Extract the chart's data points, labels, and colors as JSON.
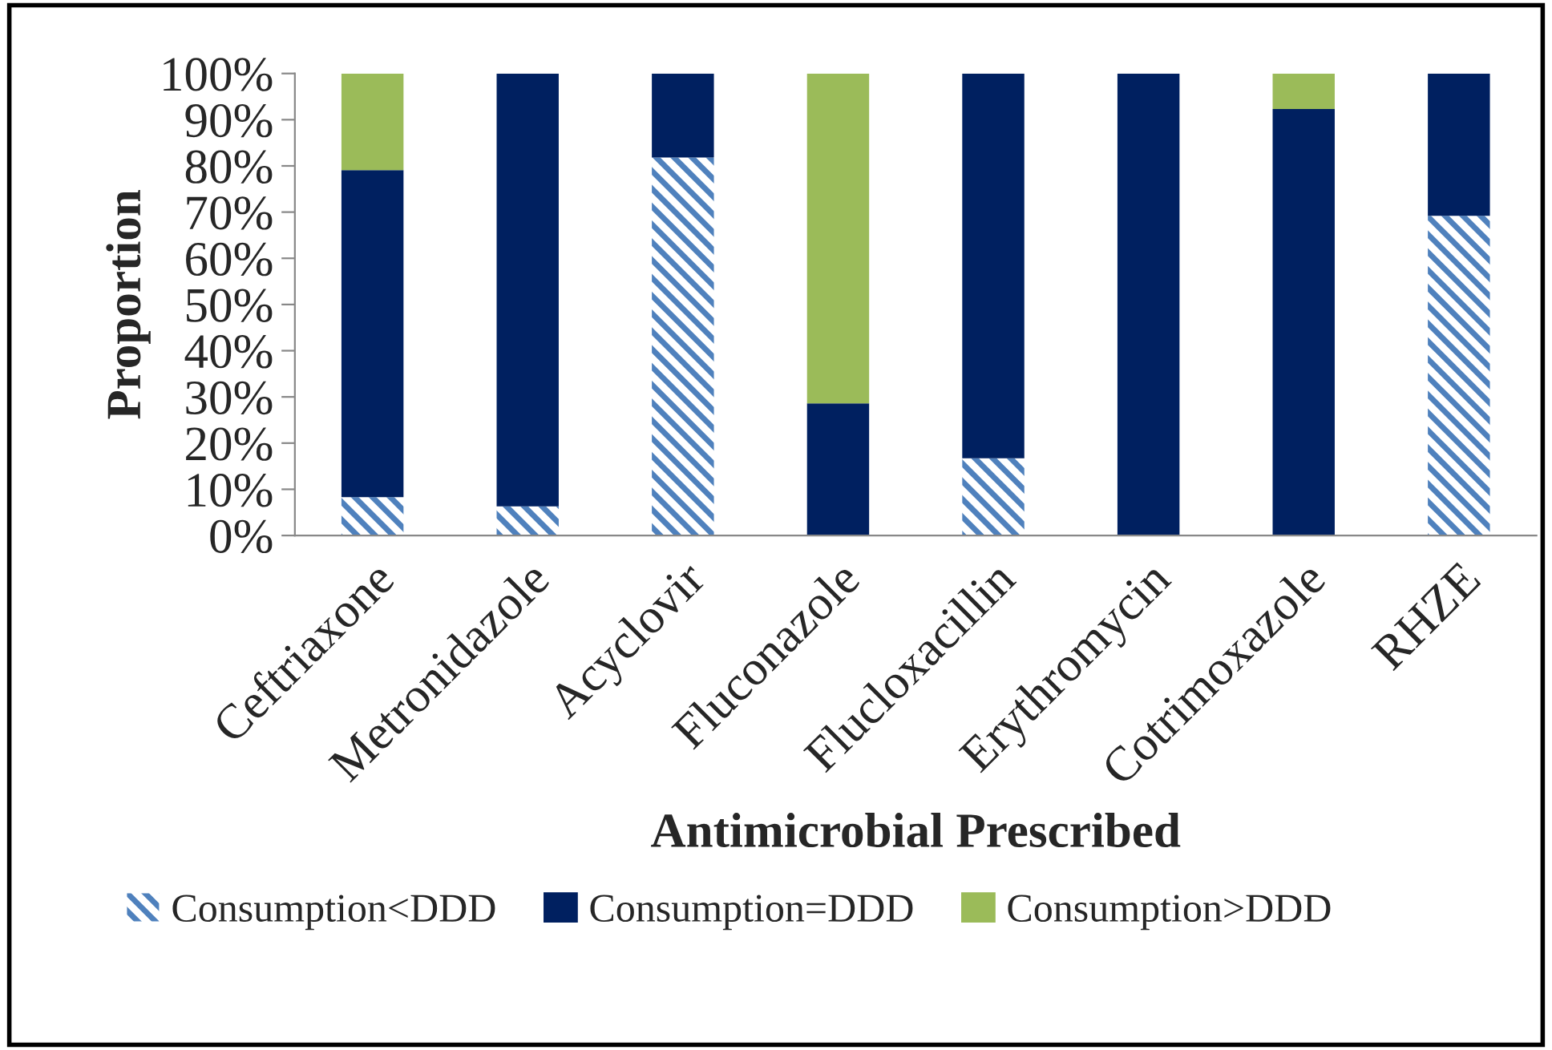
{
  "chart_data": {
    "type": "bar",
    "stacked": true,
    "xlabel": "Antimicrobial Prescribed",
    "ylabel": "Proportion",
    "categories": [
      "Ceftriaxone",
      "Metronidazole",
      "Acyclovir",
      "Fluconazole",
      "Flucloxacillin",
      "Erythromycin",
      "Cotrimoxazole",
      "RHZE"
    ],
    "series": [
      {
        "name": "Consumption<DDD",
        "color": "#4f81bd",
        "values": [
          8.3,
          6.3,
          81.8,
          0,
          16.7,
          0,
          0,
          69.2
        ]
      },
      {
        "name": "Consumption=DDD",
        "color": "#002060",
        "values": [
          70.8,
          93.7,
          18.2,
          28.6,
          83.3,
          100,
          92.3,
          30.8
        ]
      },
      {
        "name": "Consumption>DDD",
        "color": "#9bbb59",
        "values": [
          20.9,
          0,
          0,
          71.4,
          0,
          0,
          7.7,
          0
        ]
      }
    ],
    "ylim": [
      0,
      100
    ],
    "yticks": [
      {
        "value": 0,
        "label": "0%"
      },
      {
        "value": 10,
        "label": "10%"
      },
      {
        "value": 20,
        "label": "20%"
      },
      {
        "value": 30,
        "label": "30%"
      },
      {
        "value": 40,
        "label": "40%"
      },
      {
        "value": 50,
        "label": "50%"
      },
      {
        "value": 60,
        "label": "60%"
      },
      {
        "value": 70,
        "label": "70%"
      },
      {
        "value": 80,
        "label": "80%"
      },
      {
        "value": 90,
        "label": "90%"
      },
      {
        "value": 100,
        "label": "100%"
      }
    ],
    "grid": false,
    "legend": "bottom"
  }
}
